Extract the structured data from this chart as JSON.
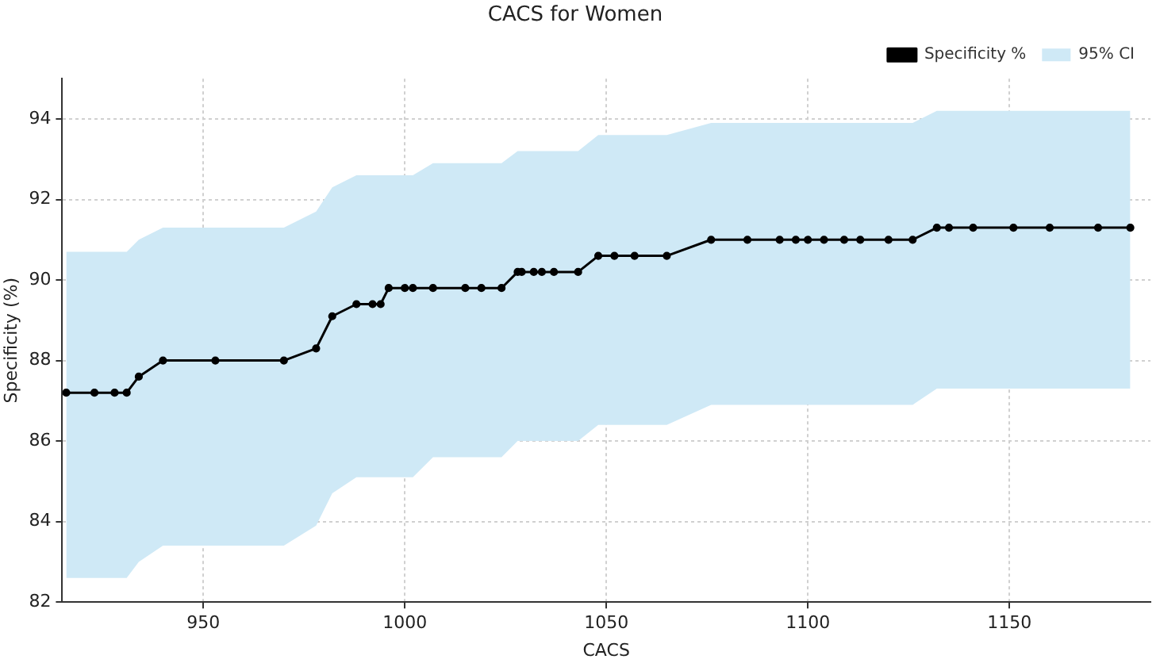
{
  "chart_data": {
    "type": "line",
    "title": "CACS for Women",
    "xlabel": "CACS",
    "ylabel": "Specificity (%)",
    "xlim": [
      915,
      1185
    ],
    "xticks": [
      950,
      1000,
      1050,
      1100,
      1150
    ],
    "ylim": [
      82,
      95
    ],
    "yticks": [
      82,
      84,
      86,
      88,
      90,
      92,
      94
    ],
    "grid": true,
    "legend": "top right",
    "marker": "circle",
    "line_style": "solid",
    "series": [
      {
        "name": "95% CI",
        "type": "area",
        "color": "#cfe9f6"
      },
      {
        "name": "Specificity %",
        "type": "line",
        "color": "#000000",
        "x": [
          916,
          923,
          928,
          931,
          934,
          940,
          953,
          970,
          978,
          982,
          988,
          992,
          994,
          996,
          1000,
          1002,
          1007,
          1015,
          1019,
          1024,
          1028,
          1029,
          1032,
          1034,
          1037,
          1043,
          1048,
          1052,
          1057,
          1065,
          1076,
          1085,
          1093,
          1097,
          1100,
          1104,
          1109,
          1113,
          1120,
          1126,
          1132,
          1135,
          1141,
          1151,
          1160,
          1172,
          1180
        ],
        "lower": [
          82.6,
          82.6,
          82.6,
          82.6,
          83.0,
          83.4,
          83.4,
          83.4,
          83.9,
          84.7,
          85.1,
          85.1,
          85.1,
          85.1,
          85.1,
          85.1,
          85.6,
          85.6,
          85.6,
          85.6,
          86.0,
          86.0,
          86.0,
          86.0,
          86.0,
          86.0,
          86.4,
          86.4,
          86.4,
          86.4,
          86.9,
          86.9,
          86.9,
          86.9,
          86.9,
          86.9,
          86.9,
          86.9,
          86.9,
          86.9,
          87.3,
          87.3,
          87.3,
          87.3,
          87.3,
          87.3,
          87.3
        ],
        "upper": [
          90.7,
          90.7,
          90.7,
          90.7,
          91.0,
          91.3,
          91.3,
          91.3,
          91.7,
          92.3,
          92.6,
          92.6,
          92.6,
          92.6,
          92.6,
          92.6,
          92.9,
          92.9,
          92.9,
          92.9,
          93.2,
          93.2,
          93.2,
          93.2,
          93.2,
          93.2,
          93.6,
          93.6,
          93.6,
          93.6,
          93.9,
          93.9,
          93.9,
          93.9,
          93.9,
          93.9,
          93.9,
          93.9,
          93.9,
          93.9,
          94.2,
          94.2,
          94.2,
          94.2,
          94.2,
          94.2,
          94.2
        ],
        "values": [
          87.2,
          87.2,
          87.2,
          87.2,
          87.6,
          88.0,
          88.0,
          88.0,
          88.3,
          89.1,
          89.4,
          89.4,
          89.4,
          89.8,
          89.8,
          89.8,
          89.8,
          89.8,
          89.8,
          89.8,
          90.2,
          90.2,
          90.2,
          90.2,
          90.2,
          90.2,
          90.6,
          90.6,
          90.6,
          90.6,
          91.0,
          91.0,
          91.0,
          91.0,
          91.0,
          91.0,
          91.0,
          91.0,
          91.0,
          91.0,
          91.3,
          91.3,
          91.3,
          91.3,
          91.3,
          91.3,
          91.3
        ]
      }
    ]
  }
}
